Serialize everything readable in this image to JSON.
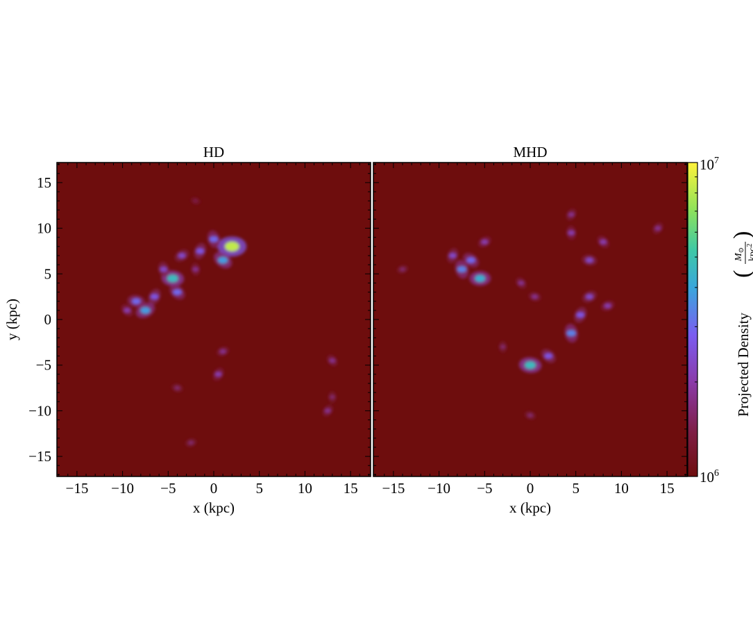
{
  "chart_data": {
    "type": "heatmap",
    "panels": [
      {
        "title": "HD",
        "xlabel": "x (kpc)",
        "ylabel": "y (kpc)",
        "xlim": [
          -17.2,
          17.2
        ],
        "ylim": [
          -17.2,
          17.2
        ],
        "xticks": [
          -15,
          -10,
          -5,
          0,
          5,
          10,
          15
        ],
        "xtick_labels": [
          "−15",
          "−10",
          "−5",
          "0",
          "5",
          "10",
          "15"
        ],
        "yticks": [
          -15,
          -10,
          -5,
          0,
          5,
          10,
          15
        ],
        "ytick_labels": [
          "−15",
          "−10",
          "−5",
          "0",
          "5",
          "10",
          "15"
        ],
        "features": [
          {
            "x": 2.0,
            "y": 8.0,
            "intensity": 0.92
          },
          {
            "x": 1.0,
            "y": 6.5,
            "intensity": 0.55
          },
          {
            "x": 0.0,
            "y": 8.8,
            "intensity": 0.45
          },
          {
            "x": -1.5,
            "y": 7.5,
            "intensity": 0.4
          },
          {
            "x": -3.5,
            "y": 7.0,
            "intensity": 0.35
          },
          {
            "x": -4.5,
            "y": 4.5,
            "intensity": 0.65
          },
          {
            "x": -4.0,
            "y": 3.0,
            "intensity": 0.45
          },
          {
            "x": -5.5,
            "y": 5.5,
            "intensity": 0.35
          },
          {
            "x": -6.5,
            "y": 2.5,
            "intensity": 0.4
          },
          {
            "x": -7.5,
            "y": 1.0,
            "intensity": 0.55
          },
          {
            "x": -8.5,
            "y": 2.0,
            "intensity": 0.45
          },
          {
            "x": -9.5,
            "y": 1.0,
            "intensity": 0.3
          },
          {
            "x": -2.0,
            "y": 5.5,
            "intensity": 0.25
          },
          {
            "x": 0.5,
            "y": -6.0,
            "intensity": 0.3
          },
          {
            "x": 1.0,
            "y": -3.5,
            "intensity": 0.25
          },
          {
            "x": -4.0,
            "y": -7.5,
            "intensity": 0.2
          },
          {
            "x": 13.0,
            "y": -4.5,
            "intensity": 0.25
          },
          {
            "x": 13.0,
            "y": -8.5,
            "intensity": 0.2
          },
          {
            "x": 12.5,
            "y": -10.0,
            "intensity": 0.25
          },
          {
            "x": -2.5,
            "y": -13.5,
            "intensity": 0.2
          },
          {
            "x": -2.0,
            "y": 13.0,
            "intensity": 0.15
          }
        ]
      },
      {
        "title": "MHD",
        "xlabel": "x (kpc)",
        "ylabel": "",
        "xlim": [
          -17.2,
          17.2
        ],
        "ylim": [
          -17.2,
          17.2
        ],
        "xticks": [
          -15,
          -10,
          -5,
          0,
          5,
          10,
          15
        ],
        "xtick_labels": [
          "−15",
          "−10",
          "−5",
          "0",
          "5",
          "10",
          "15"
        ],
        "features": [
          {
            "x": -5.5,
            "y": 4.5,
            "intensity": 0.6
          },
          {
            "x": -6.5,
            "y": 6.5,
            "intensity": 0.45
          },
          {
            "x": -7.5,
            "y": 5.5,
            "intensity": 0.5
          },
          {
            "x": -8.5,
            "y": 7.0,
            "intensity": 0.35
          },
          {
            "x": -5.0,
            "y": 8.5,
            "intensity": 0.3
          },
          {
            "x": 0.0,
            "y": -5.0,
            "intensity": 0.65
          },
          {
            "x": 2.0,
            "y": -4.0,
            "intensity": 0.4
          },
          {
            "x": 4.5,
            "y": -1.5,
            "intensity": 0.5
          },
          {
            "x": 5.5,
            "y": 0.5,
            "intensity": 0.4
          },
          {
            "x": 6.5,
            "y": 2.5,
            "intensity": 0.35
          },
          {
            "x": 6.5,
            "y": 6.5,
            "intensity": 0.35
          },
          {
            "x": 8.0,
            "y": 8.5,
            "intensity": 0.3
          },
          {
            "x": 4.5,
            "y": 9.5,
            "intensity": 0.3
          },
          {
            "x": 4.5,
            "y": 11.5,
            "intensity": 0.25
          },
          {
            "x": 8.5,
            "y": 1.5,
            "intensity": 0.3
          },
          {
            "x": 0.5,
            "y": 2.5,
            "intensity": 0.25
          },
          {
            "x": -1.0,
            "y": 4.0,
            "intensity": 0.25
          },
          {
            "x": -3.0,
            "y": -3.0,
            "intensity": 0.2
          },
          {
            "x": 14.0,
            "y": 10.0,
            "intensity": 0.25
          },
          {
            "x": -14.0,
            "y": 5.5,
            "intensity": 0.2
          },
          {
            "x": 0.0,
            "y": -10.5,
            "intensity": 0.2
          }
        ]
      }
    ],
    "colorbar": {
      "label": "Projected Density",
      "unit_numerator": "M",
      "unit_subscript": "⊙",
      "unit_denominator": "kpc",
      "unit_power": "2",
      "scale": "log",
      "min_label": "10",
      "min_exponent": "6",
      "max_label": "10",
      "max_exponent": "7",
      "range": [
        1000000,
        10000000
      ],
      "colormap_stops": [
        "#6e0d0d",
        "#7e1e44",
        "#8a3aa8",
        "#7b5cf0",
        "#3aa6dc",
        "#3ec8a6",
        "#8fe25a",
        "#fff23a"
      ]
    }
  }
}
